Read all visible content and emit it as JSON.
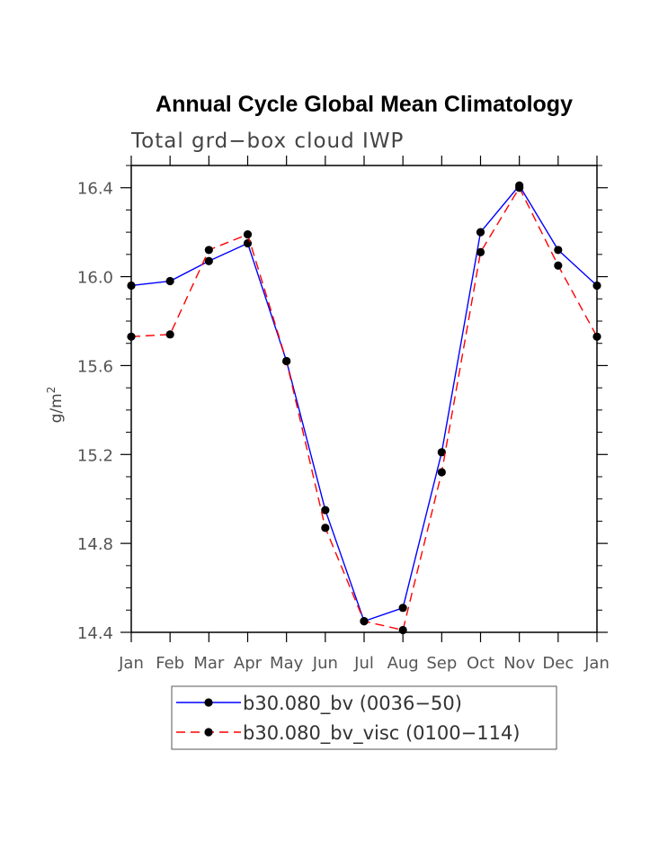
{
  "chart_data": {
    "type": "line",
    "title": "Annual Cycle Global Mean Climatology",
    "subtitle": "Total grd−box cloud IWP",
    "ylabel": "g/m",
    "ylabel_superscript": "2",
    "xlabel": "",
    "categories": [
      "Jan",
      "Feb",
      "Mar",
      "Apr",
      "May",
      "Jun",
      "Jul",
      "Aug",
      "Sep",
      "Oct",
      "Nov",
      "Dec",
      "Jan"
    ],
    "ylim": [
      14.4,
      16.5
    ],
    "yticks": [
      14.4,
      14.8,
      15.2,
      15.6,
      16.0,
      16.4
    ],
    "ytick_labels": [
      "14.4",
      "14.8",
      "15.2",
      "15.6",
      "16.0",
      "16.4"
    ],
    "series": [
      {
        "name": "b30.080_bv (0036−50)",
        "color": "#0000ff",
        "dash": "solid",
        "values": [
          15.96,
          15.98,
          16.07,
          16.15,
          15.62,
          14.95,
          14.45,
          14.51,
          15.21,
          16.2,
          16.41,
          16.12,
          15.96
        ]
      },
      {
        "name": "b30.080_bv_visc (0100−114)",
        "color": "#ff0000",
        "dash": "dashed",
        "values": [
          15.73,
          15.74,
          16.12,
          16.19,
          15.62,
          14.87,
          14.45,
          14.41,
          15.12,
          16.11,
          16.4,
          16.05,
          15.73
        ]
      }
    ],
    "legend_position": "bottom-center"
  }
}
